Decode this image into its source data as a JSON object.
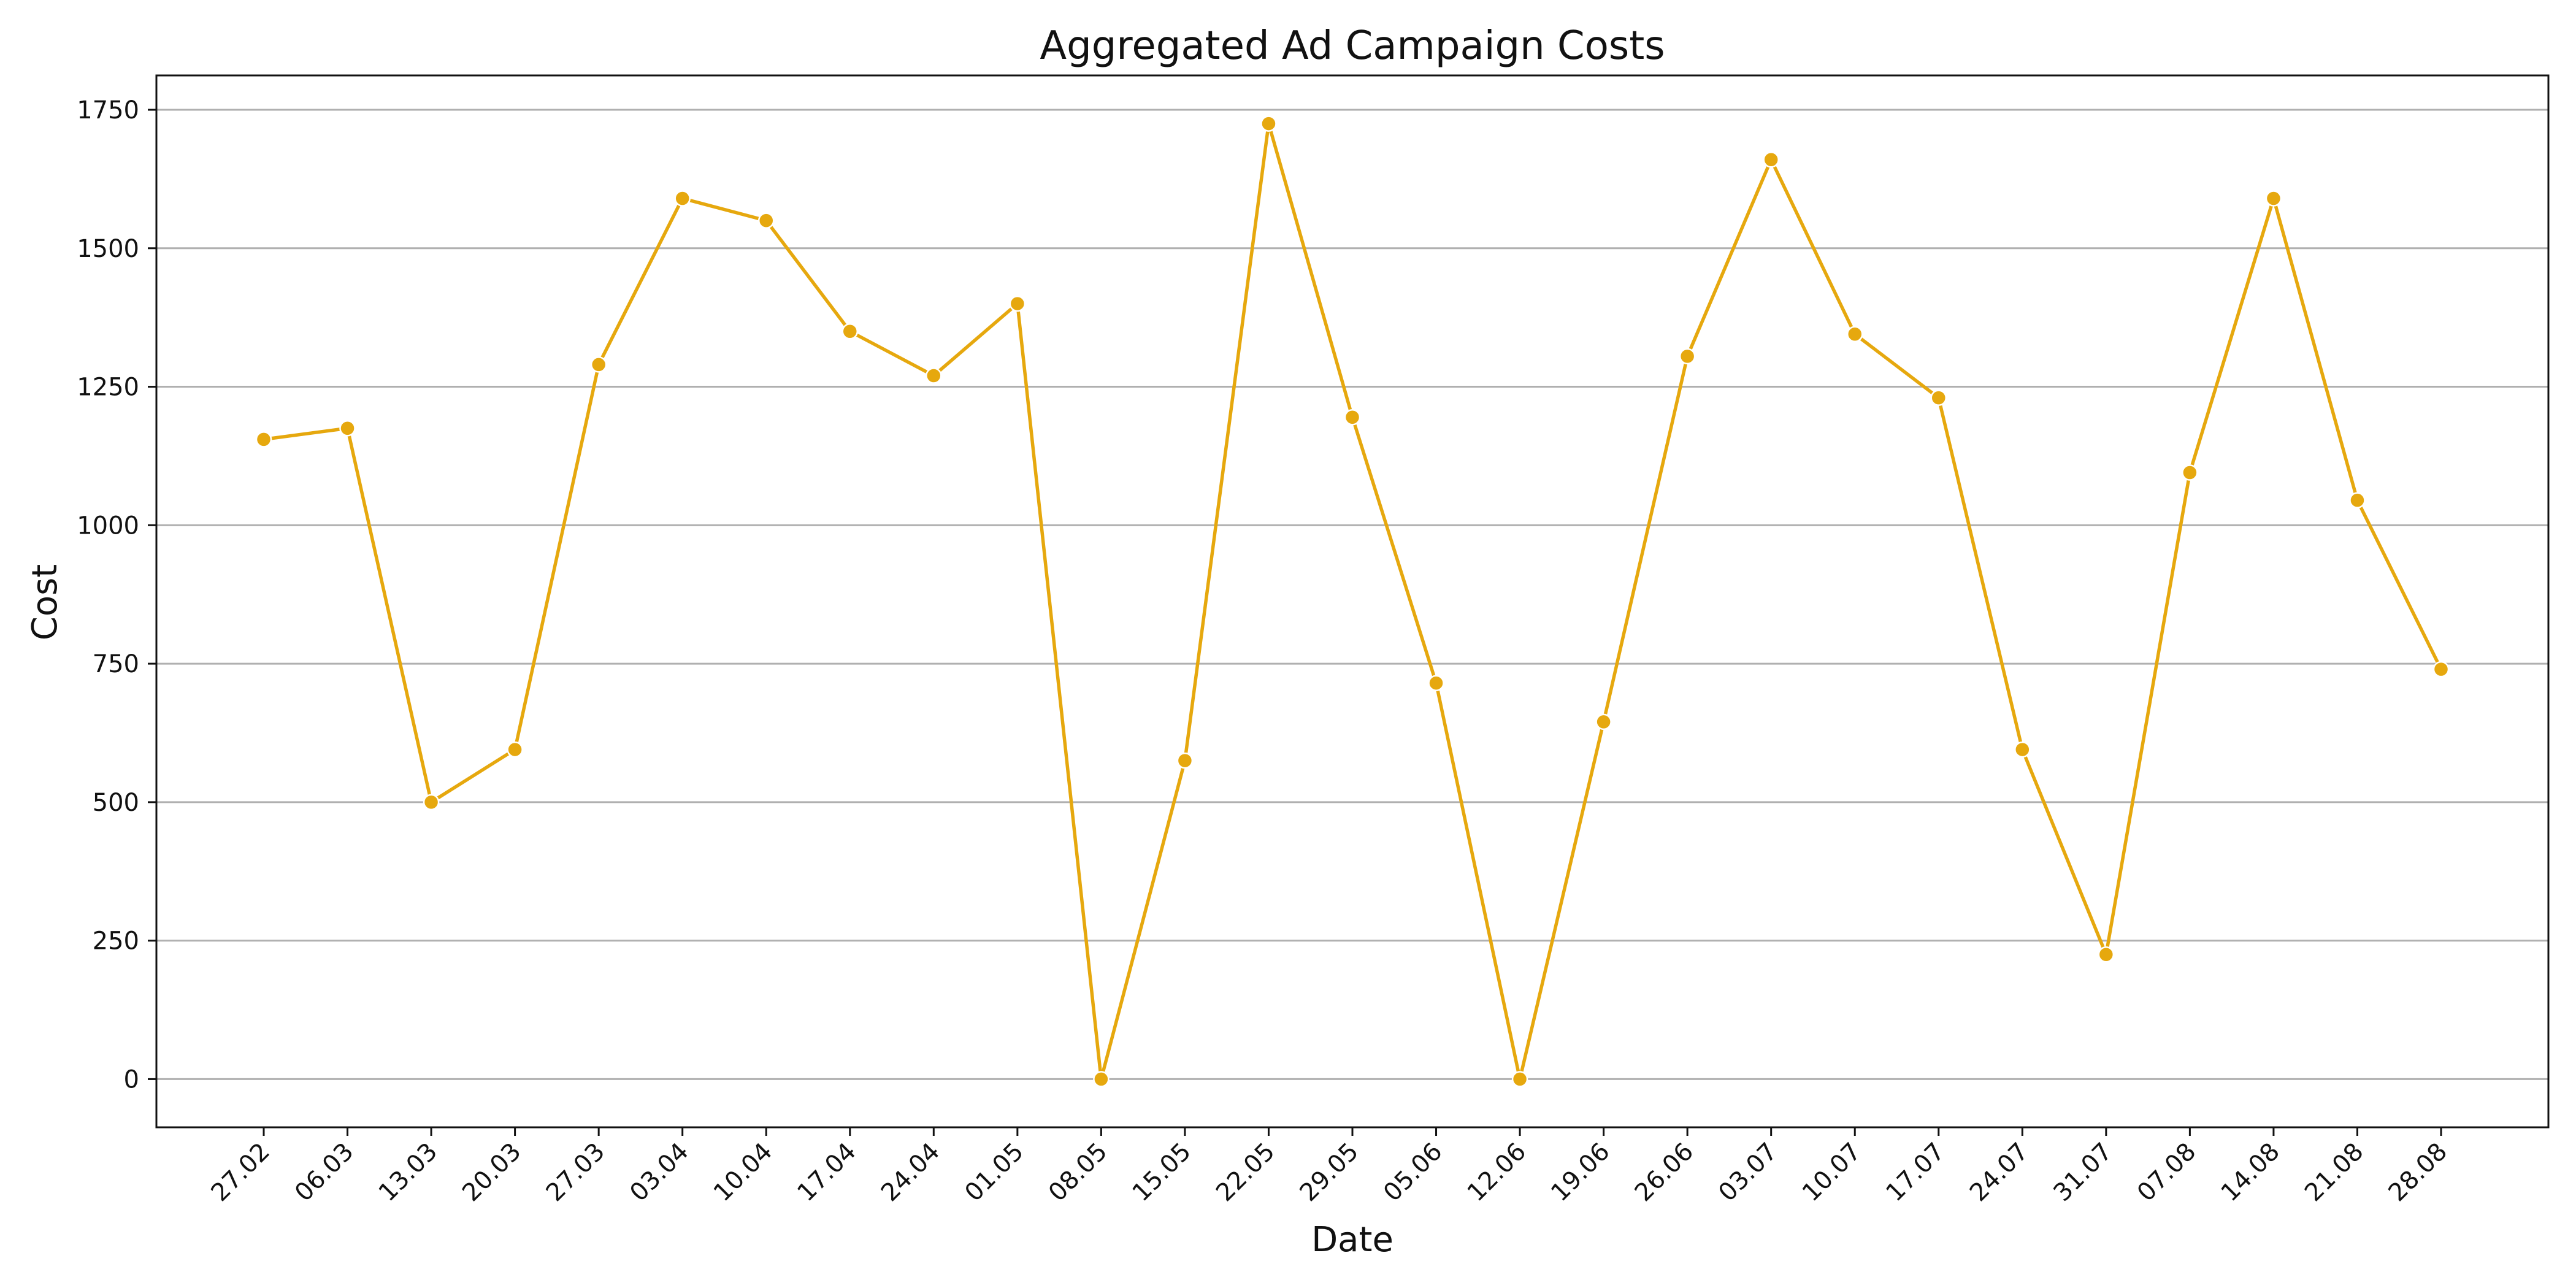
{
  "chart_data": {
    "type": "line",
    "title": "Aggregated Ad Campaign Costs",
    "xlabel": "Date",
    "ylabel": "Cost",
    "categories": [
      "27.02",
      "06.03",
      "13.03",
      "20.03",
      "27.03",
      "03.04",
      "10.04",
      "17.04",
      "24.04",
      "01.05",
      "08.05",
      "15.05",
      "22.05",
      "29.05",
      "05.06",
      "12.06",
      "19.06",
      "26.06",
      "03.07",
      "10.07",
      "17.07",
      "24.07",
      "31.07",
      "07.08",
      "14.08",
      "21.08",
      "28.08"
    ],
    "series": [
      {
        "values": [
          1155,
          1175,
          500,
          595,
          1290,
          1590,
          1550,
          1350,
          1270,
          1400,
          0,
          575,
          1725,
          1195,
          715,
          0,
          645,
          1305,
          1660,
          1345,
          1230,
          595,
          225,
          1095,
          1590,
          1045,
          740
        ],
        "color": "#E6A80E",
        "marker": "circle"
      }
    ],
    "ylim": [
      -87,
      1812
    ],
    "yticks": [
      0,
      250,
      500,
      750,
      1000,
      1250,
      1500,
      1750
    ],
    "grid": "horizontal",
    "legend": "none"
  }
}
